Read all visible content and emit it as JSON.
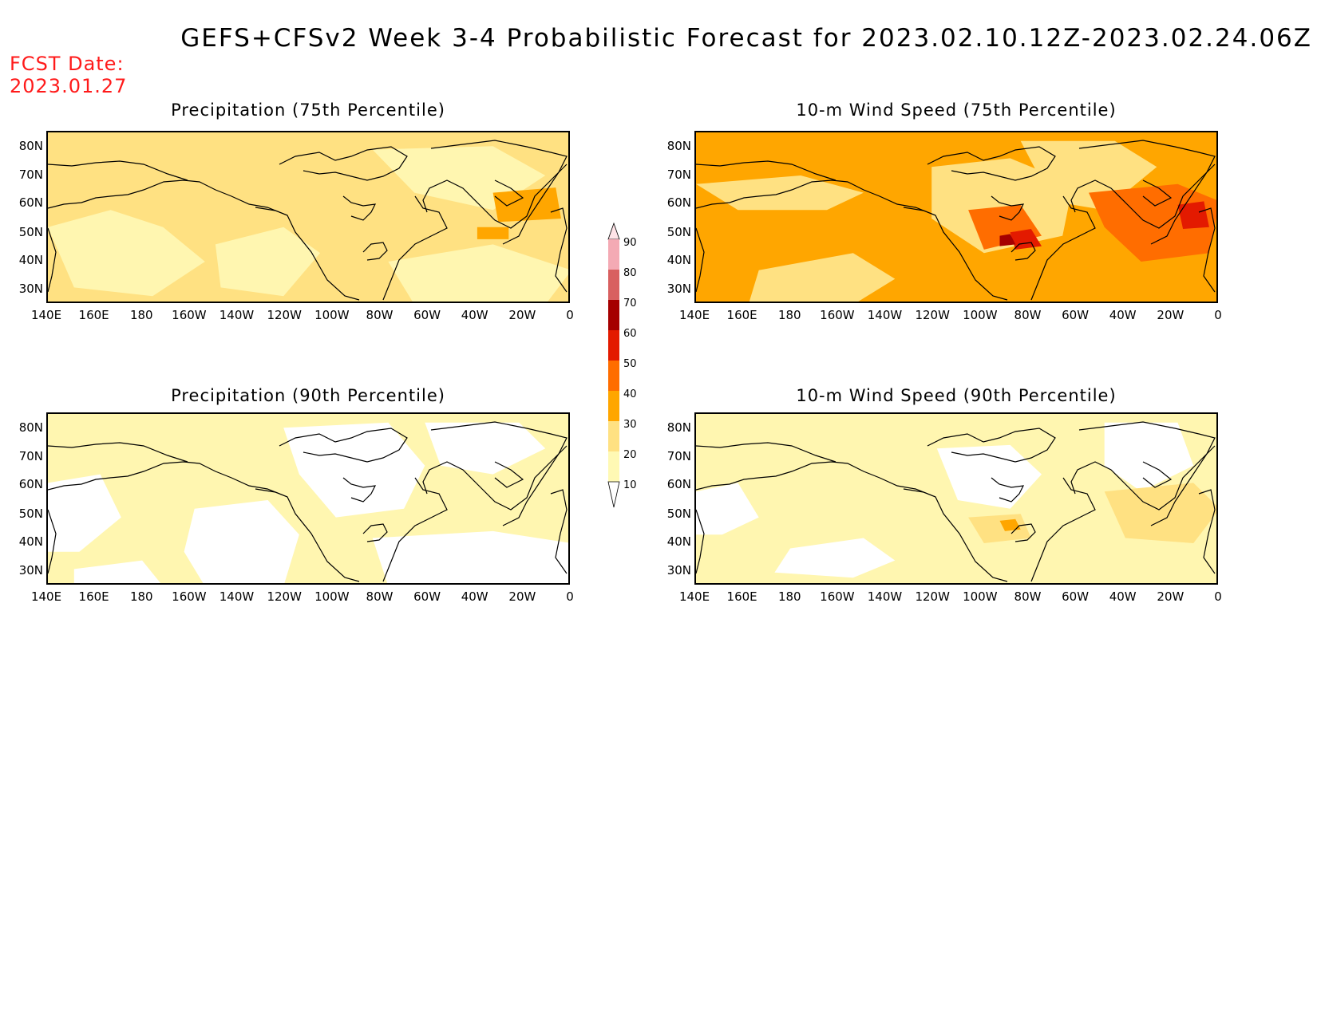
{
  "title": "GEFS+CFSv2 Week 3-4 Probabilistic Forecast for 2023.02.10.12Z-2023.02.24.06Z",
  "fcst_label": "FCST Date:",
  "fcst_date": "2023.01.27",
  "lat_labels": [
    "80N",
    "70N",
    "60N",
    "50N",
    "40N",
    "30N"
  ],
  "lon_labels": [
    "140E",
    "160E",
    "180",
    "160W",
    "140W",
    "120W",
    "100W",
    "80W",
    "60W",
    "40W",
    "20W",
    "0"
  ],
  "colorbar": {
    "levels": [
      "10",
      "20",
      "30",
      "40",
      "50",
      "60",
      "70",
      "80",
      "90"
    ],
    "colors": [
      "#ffffff",
      "#fff9b4",
      "#ffe182",
      "#ffa600",
      "#ff6d00",
      "#e31a00",
      "#a50000",
      "#d86060",
      "#f4aab4",
      "#ffe4e8"
    ]
  },
  "panels": [
    {
      "title": "Precipitation (75th Percentile)",
      "base": "#ffe182",
      "fills": [
        "#fff6b0",
        "#ffa600"
      ]
    },
    {
      "title": "10-m Wind Speed (75th Percentile)",
      "base": "#ffa600",
      "fills": [
        "#ffe182",
        "#ff6d00",
        "#e31a00",
        "#a50000"
      ]
    },
    {
      "title": "Precipitation (90th Percentile)",
      "base": "#fff6b0",
      "fills": [
        "#ffffff"
      ]
    },
    {
      "title": "10-m Wind Speed (90th Percentile)",
      "base": "#fff6b0",
      "fills": [
        "#ffffff",
        "#ffe182",
        "#ffa600"
      ]
    }
  ]
}
